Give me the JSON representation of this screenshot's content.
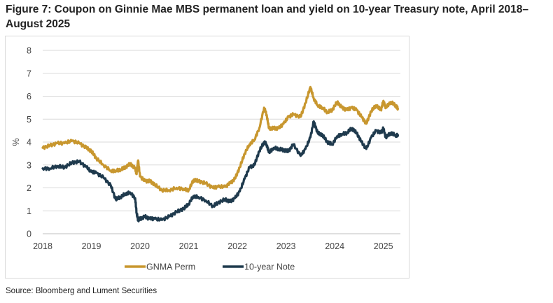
{
  "title": "Figure 7: Coupon on Ginnie Mae MBS permanent loan and yield on 10-year Treasury note, April 2018–August 2025",
  "source": "Source: Bloomberg and Lument Securities",
  "colors": {
    "gnma": "#c8972f",
    "note": "#1f3a4d",
    "grid": "#d9d9d9",
    "axis": "#bfbfbf"
  },
  "chart_data": {
    "type": "line",
    "ylabel": "%",
    "xlabel": "",
    "xlim": [
      2018.0,
      2025.35
    ],
    "ylim": [
      0,
      8
    ],
    "x_ticks": [
      "2018",
      "2019",
      "2020",
      "2021",
      "2022",
      "2023",
      "2024",
      "2025"
    ],
    "y_ticks": [
      "0",
      "1",
      "2",
      "3",
      "4",
      "5",
      "6",
      "7",
      "8"
    ],
    "grid": "horizontal",
    "legend": "bottom",
    "series": [
      {
        "name": "GNMA Perm",
        "x": [
          2018.0,
          2018.15,
          2018.3,
          2018.45,
          2018.6,
          2018.75,
          2018.9,
          2019.0,
          2019.1,
          2019.25,
          2019.4,
          2019.5,
          2019.6,
          2019.7,
          2019.8,
          2019.9,
          2019.93,
          2019.96,
          2020.0,
          2020.1,
          2020.2,
          2020.3,
          2020.45,
          2020.6,
          2020.75,
          2020.9,
          2021.0,
          2021.1,
          2021.2,
          2021.35,
          2021.5,
          2021.6,
          2021.75,
          2021.85,
          2021.95,
          2022.05,
          2022.15,
          2022.25,
          2022.35,
          2022.45,
          2022.55,
          2022.6,
          2022.65,
          2022.75,
          2022.85,
          2022.95,
          2023.05,
          2023.15,
          2023.3,
          2023.4,
          2023.5,
          2023.57,
          2023.65,
          2023.75,
          2023.85,
          2023.95,
          2024.05,
          2024.15,
          2024.25,
          2024.35,
          2024.45,
          2024.55,
          2024.65,
          2024.75,
          2024.85,
          2024.95,
          2025.0,
          2025.05,
          2025.15,
          2025.25,
          2025.3
        ],
        "y": [
          3.75,
          3.85,
          3.95,
          3.95,
          4.05,
          3.95,
          3.75,
          3.6,
          3.3,
          3.0,
          2.75,
          2.75,
          2.8,
          2.9,
          3.05,
          2.85,
          2.6,
          3.2,
          2.5,
          2.3,
          2.3,
          2.15,
          1.9,
          1.9,
          2.0,
          1.95,
          1.9,
          2.35,
          2.3,
          2.2,
          2.0,
          2.05,
          2.05,
          2.2,
          2.4,
          2.9,
          3.5,
          3.9,
          4.1,
          4.6,
          5.5,
          5.2,
          4.6,
          4.6,
          4.6,
          4.8,
          5.1,
          5.2,
          5.1,
          5.7,
          6.4,
          5.9,
          5.6,
          5.5,
          5.3,
          5.4,
          5.75,
          5.5,
          5.4,
          5.5,
          5.4,
          5.1,
          4.8,
          5.35,
          5.6,
          5.4,
          5.8,
          5.5,
          5.75,
          5.6,
          5.45
        ]
      },
      {
        "name": "10-year Note",
        "x": [
          2018.0,
          2018.15,
          2018.3,
          2018.45,
          2018.6,
          2018.75,
          2018.9,
          2019.0,
          2019.1,
          2019.25,
          2019.4,
          2019.5,
          2019.6,
          2019.7,
          2019.8,
          2019.9,
          2019.93,
          2019.96,
          2020.0,
          2020.1,
          2020.2,
          2020.3,
          2020.45,
          2020.6,
          2020.75,
          2020.9,
          2021.0,
          2021.1,
          2021.2,
          2021.35,
          2021.5,
          2021.6,
          2021.75,
          2021.85,
          2021.95,
          2022.05,
          2022.15,
          2022.25,
          2022.35,
          2022.45,
          2022.55,
          2022.6,
          2022.65,
          2022.75,
          2022.85,
          2022.95,
          2023.05,
          2023.15,
          2023.3,
          2023.4,
          2023.5,
          2023.57,
          2023.65,
          2023.75,
          2023.85,
          2023.95,
          2024.05,
          2024.15,
          2024.25,
          2024.35,
          2024.45,
          2024.55,
          2024.65,
          2024.75,
          2024.85,
          2024.95,
          2025.0,
          2025.05,
          2025.15,
          2025.25,
          2025.3
        ],
        "y": [
          2.85,
          2.85,
          2.95,
          2.9,
          3.1,
          3.15,
          2.9,
          2.7,
          2.65,
          2.45,
          2.1,
          1.5,
          1.6,
          1.75,
          1.8,
          1.55,
          0.9,
          0.6,
          0.65,
          0.75,
          0.65,
          0.65,
          0.6,
          0.75,
          0.95,
          1.1,
          1.3,
          1.65,
          1.6,
          1.45,
          1.2,
          1.35,
          1.5,
          1.4,
          1.55,
          1.85,
          2.4,
          2.9,
          3.0,
          3.6,
          4.0,
          3.9,
          3.55,
          3.75,
          3.7,
          3.65,
          3.6,
          3.9,
          3.4,
          3.7,
          4.2,
          4.9,
          4.4,
          4.3,
          4.0,
          3.9,
          4.25,
          4.35,
          4.4,
          4.6,
          4.4,
          4.0,
          3.7,
          4.2,
          4.5,
          4.4,
          4.6,
          4.2,
          4.4,
          4.3,
          4.3
        ]
      }
    ]
  }
}
